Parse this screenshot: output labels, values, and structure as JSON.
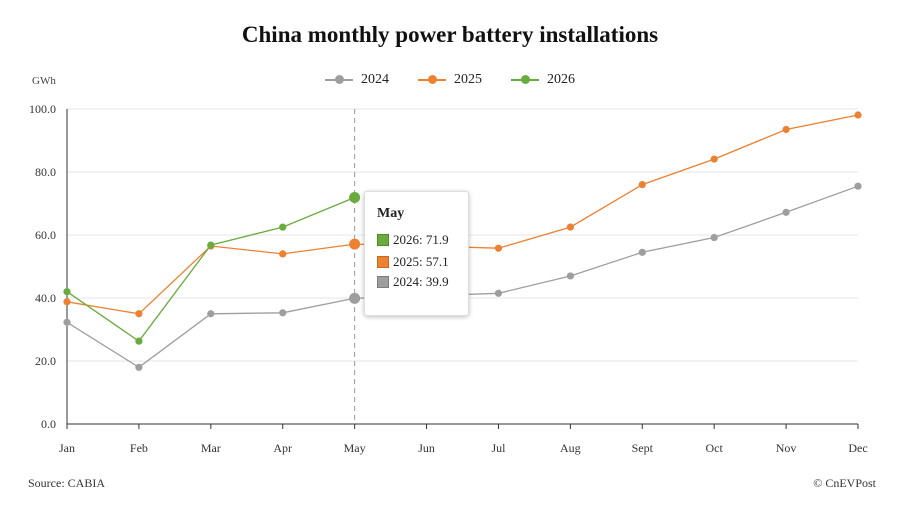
{
  "chart_data": {
    "type": "line",
    "title": "China monthly power battery installations",
    "ylabel": "GWh",
    "xlabel": "",
    "categories": [
      "Jan",
      "Feb",
      "Mar",
      "Apr",
      "May",
      "Jun",
      "Jul",
      "Aug",
      "Sept",
      "Oct",
      "Nov",
      "Dec"
    ],
    "ylim": [
      0,
      100
    ],
    "yticks": [
      "0.0",
      "20.0",
      "40.0",
      "60.0",
      "80.0",
      "100.0"
    ],
    "grid": true,
    "legend_position": "top-center",
    "series": [
      {
        "name": "2024",
        "color": "#9e9e9e",
        "values": [
          32.3,
          18.0,
          35.0,
          35.3,
          39.9,
          null,
          41.5,
          47.0,
          54.5,
          59.2,
          67.2,
          75.5
        ]
      },
      {
        "name": "2025",
        "color": "#ec8131",
        "values": [
          38.8,
          35.0,
          56.5,
          54.0,
          57.1,
          null,
          55.8,
          62.5,
          76.0,
          84.1,
          93.5,
          98.1
        ]
      },
      {
        "name": "2026",
        "color": "#6aab3e",
        "values": [
          42.0,
          26.3,
          56.8,
          62.5,
          71.9,
          null,
          null,
          null,
          null,
          null,
          null,
          null
        ]
      }
    ],
    "tooltip": {
      "title": "May",
      "rows": [
        "2026: 71.9",
        "2025: 57.1",
        "2024: 39.9"
      ]
    }
  },
  "footer": {
    "source": "Source: CABIA",
    "credit": "© CnEVPost"
  }
}
